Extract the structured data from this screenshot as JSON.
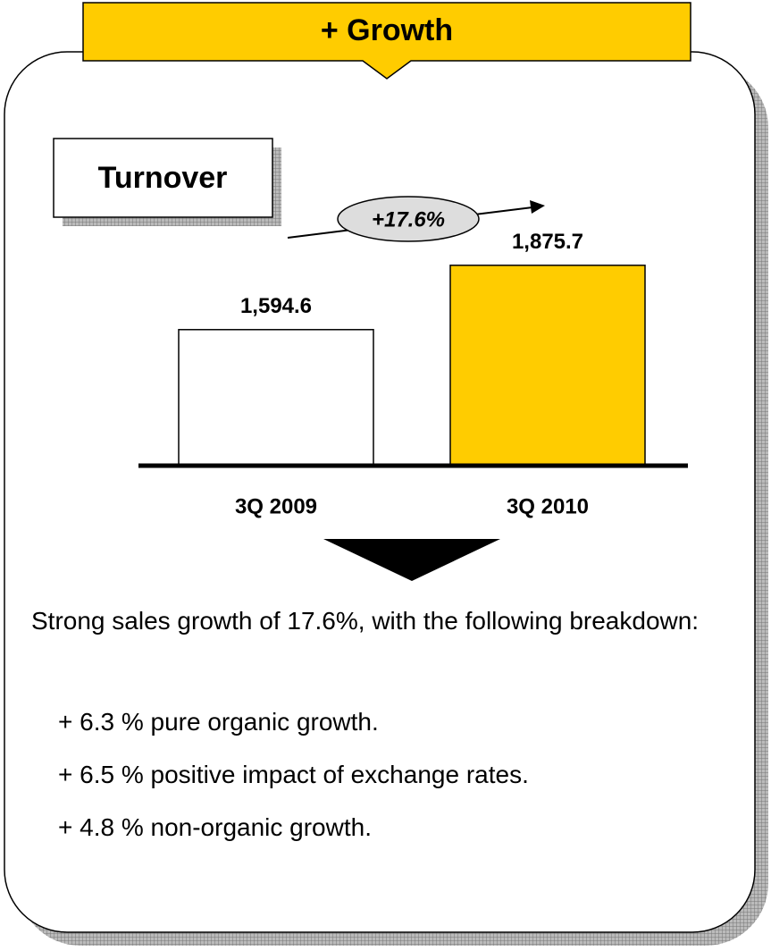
{
  "header": {
    "title": "+ Growth"
  },
  "chart_data": {
    "type": "bar",
    "title": "Turnover",
    "categories": [
      "3Q 2009",
      "3Q 2010"
    ],
    "values": [
      1594.6,
      1875.7
    ],
    "value_labels": [
      "1,594.6",
      "1,875.7"
    ],
    "colors": [
      "#ffffff",
      "#ffcc00"
    ],
    "ylim": [
      1000,
      2250
    ],
    "annotation": "+17.6%"
  },
  "summary": {
    "text": "Strong sales growth of 17.6%, with the following breakdown:",
    "items": [
      "+ 6.3 % pure organic growth.",
      "+ 6.5 % positive impact of exchange rates.",
      "+ 4.8 % non-organic growth."
    ]
  }
}
